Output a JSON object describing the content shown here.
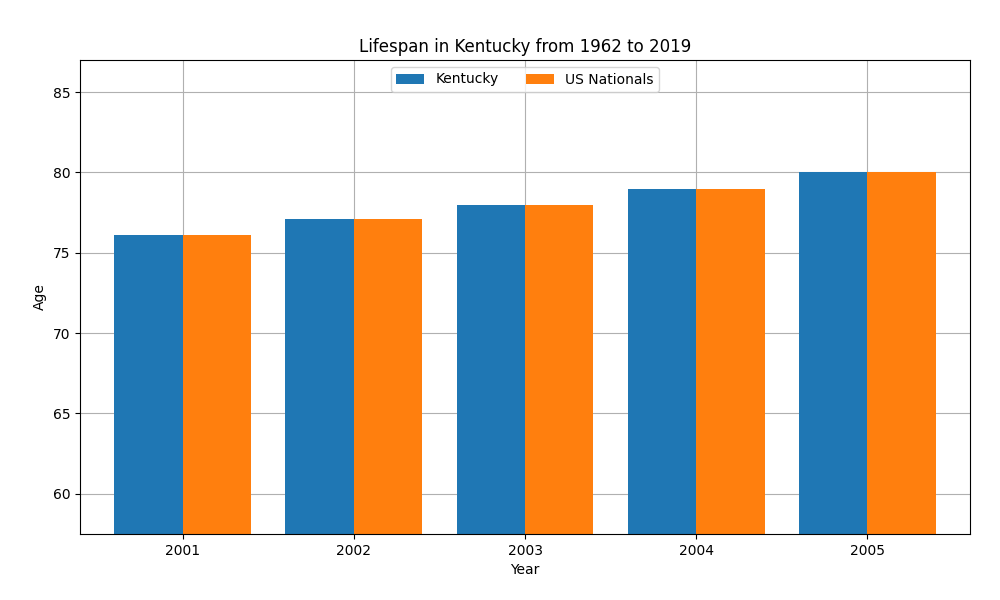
{
  "chart_data": {
    "type": "bar",
    "title": "Lifespan in Kentucky from 1962 to 2019",
    "x_label": "Year",
    "y_label": "Age",
    "categories": [
      "2001",
      "2002",
      "2003",
      "2004",
      "2005"
    ],
    "series": [
      {
        "name": "Kentucky",
        "values": [
          76.1,
          77.1,
          78.0,
          79.0,
          80.0
        ]
      },
      {
        "name": "US Nationals",
        "values": [
          76.1,
          77.1,
          78.0,
          79.0,
          80.0
        ]
      }
    ],
    "ylim": [
      57.5,
      87
    ],
    "yticks": [
      60,
      65,
      70,
      75,
      80,
      85
    ],
    "grid": true,
    "legend": "upper center"
  }
}
